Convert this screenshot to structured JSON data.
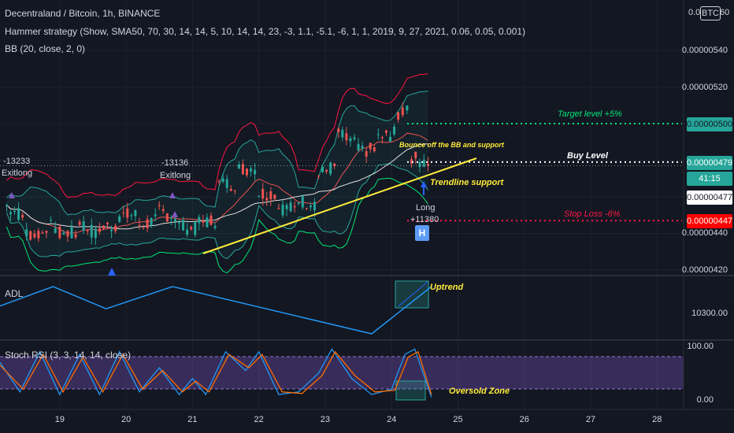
{
  "header": {
    "symbol_line": "Decentraland / Bitcoin, 1h, BINANCE",
    "strategy_line": "Hammer strategy (Show, SMA50, 70, 30, 14, 14, 5, 10, 14, 14, 23, -3, 1.1, -5.1, -6, 1, 1, 2019, 9, 27, 2021, 0.06, 0.05, 0.001)",
    "bb_line": "BB (20, close, 2, 0)",
    "currency_badge": "BTC",
    "top_label_partial": "0.0",
    "top_label_right": "60"
  },
  "price_axis": {
    "labels": [
      "0.00000540",
      "0.00000520",
      "0.00000440",
      "0.00000420"
    ],
    "target_badge": "0.00000500",
    "buy_badge": "0.00000479",
    "countdown": "41:15",
    "last_badge": "0.00000477",
    "stop_badge": "0.00000447",
    "colors": {
      "target": "#26a69a",
      "buy": "#ffffff",
      "stop": "#ff0000",
      "last": "#ffffff"
    }
  },
  "annotations": {
    "target_level": "Target level +5%",
    "buy_level": "Buy Level",
    "stop_loss": "Stop Loss -6%",
    "bounce": "Bounce off the BB and support",
    "trendline": "Trendline support",
    "uptrend": "Uptrend",
    "oversold": "Oversold Zone",
    "signal1_value": "-13233",
    "signal1_label": "Exitlong",
    "signal2_value": "-13136",
    "signal2_label": "Exitlong",
    "long_label": "Long",
    "long_value": "+11380",
    "hammer_marker": "H"
  },
  "adl_pane": {
    "title": "ADL",
    "axis_label": "10300.00"
  },
  "rsi_pane": {
    "title": "Stoch RSI (3, 3, 14, 14, close)",
    "axis_top": "100.00",
    "axis_bottom": "0.00"
  },
  "time_axis": {
    "labels": [
      "19",
      "20",
      "21",
      "22",
      "23",
      "24",
      "25",
      "26",
      "27",
      "28"
    ]
  },
  "chart_data": [
    {
      "type": "candlestick",
      "title": "Decentraland / Bitcoin, 1h, BINANCE",
      "ylabel": "",
      "ylim": [
        4.18e-06,
        5.62e-06
      ],
      "x_range": [
        18.1,
        28.4
      ],
      "levels": {
        "target": 5e-06,
        "buy": 4.79e-06,
        "stop": 4.47e-06,
        "last": 4.77e-06
      },
      "candles_approx": [
        {
          "day": 18.2,
          "open": 4.62e-06,
          "close": 4.55e-06
        },
        {
          "day": 18.5,
          "open": 4.48e-06,
          "close": 4.4e-06
        },
        {
          "day": 18.8,
          "open": 4.4e-06,
          "close": 4.44e-06
        },
        {
          "day": 19.0,
          "open": 4.43e-06,
          "close": 4.4e-06
        },
        {
          "day": 19.3,
          "open": 4.4e-06,
          "close": 4.46e-06
        },
        {
          "day": 19.6,
          "open": 4.38e-06,
          "close": 4.43e-06
        },
        {
          "day": 19.9,
          "open": 4.45e-06,
          "close": 4.5e-06
        },
        {
          "day": 20.2,
          "open": 4.5e-06,
          "close": 4.45e-06
        },
        {
          "day": 20.5,
          "open": 4.47e-06,
          "close": 4.52e-06
        },
        {
          "day": 20.8,
          "open": 4.48e-06,
          "close": 4.44e-06
        },
        {
          "day": 21.1,
          "open": 4.42e-06,
          "close": 4.46e-06
        },
        {
          "day": 21.4,
          "open": 4.47e-06,
          "close": 4.67e-06
        },
        {
          "day": 21.7,
          "open": 4.67e-06,
          "close": 4.75e-06
        },
        {
          "day": 22.0,
          "open": 4.76e-06,
          "close": 4.62e-06
        },
        {
          "day": 22.3,
          "open": 4.62e-06,
          "close": 4.54e-06
        },
        {
          "day": 22.6,
          "open": 4.53e-06,
          "close": 4.58e-06
        },
        {
          "day": 22.9,
          "open": 4.56e-06,
          "close": 4.72e-06
        },
        {
          "day": 23.2,
          "open": 4.78e-06,
          "close": 4.94e-06
        },
        {
          "day": 23.5,
          "open": 4.88e-06,
          "close": 4.85e-06
        },
        {
          "day": 23.8,
          "open": 4.86e-06,
          "close": 4.92e-06
        },
        {
          "day": 24.1,
          "open": 4.95e-06,
          "close": 5.05e-06
        },
        {
          "day": 24.3,
          "open": 5.12e-06,
          "close": 4.82e-06
        },
        {
          "day": 24.55,
          "open": 4.78e-06,
          "close": 4.77e-06
        }
      ],
      "trendline": [
        {
          "day": 21.2,
          "price": 4.42e-06
        },
        {
          "day": 25.4,
          "price": 4.83e-06
        }
      ]
    },
    {
      "type": "line",
      "title": "ADL",
      "series": [
        {
          "values": [
            [
              18.1,
              10310
            ],
            [
              18.9,
              10345
            ],
            [
              19.7,
              10305
            ],
            [
              20.7,
              10345
            ],
            [
              23.7,
              10260
            ],
            [
              24.6,
              10345
            ]
          ]
        }
      ]
    },
    {
      "type": "line",
      "title": "Stoch RSI (3, 3, 14, 14, close)",
      "ylim": [
        0,
        100
      ],
      "bands": [
        20,
        80
      ],
      "series": [
        {
          "values": [
            [
              18.1,
              70
            ],
            [
              18.4,
              15
            ],
            [
              18.7,
              90
            ],
            [
              19.0,
              10
            ],
            [
              19.3,
              85
            ],
            [
              19.6,
              10
            ],
            [
              19.9,
              90
            ],
            [
              20.2,
              15
            ],
            [
              20.5,
              60
            ],
            [
              20.8,
              10
            ],
            [
              21.0,
              40
            ],
            [
              21.2,
              10
            ],
            [
              21.5,
              90
            ],
            [
              21.8,
              55
            ],
            [
              22.0,
              90
            ],
            [
              22.3,
              10
            ],
            [
              22.6,
              15
            ],
            [
              22.9,
              50
            ],
            [
              23.1,
              95
            ],
            [
              23.4,
              40
            ],
            [
              23.7,
              10
            ],
            [
              24.0,
              20
            ],
            [
              24.2,
              85
            ],
            [
              24.35,
              95
            ],
            [
              24.6,
              5
            ]
          ]
        },
        {
          "values": [
            [
              18.1,
              65
            ],
            [
              18.45,
              20
            ],
            [
              18.75,
              85
            ],
            [
              19.05,
              15
            ],
            [
              19.35,
              80
            ],
            [
              19.65,
              15
            ],
            [
              19.95,
              85
            ],
            [
              20.25,
              20
            ],
            [
              20.55,
              55
            ],
            [
              20.85,
              15
            ],
            [
              21.05,
              35
            ],
            [
              21.25,
              15
            ],
            [
              21.55,
              85
            ],
            [
              21.85,
              60
            ],
            [
              22.05,
              85
            ],
            [
              22.35,
              15
            ],
            [
              22.65,
              12
            ],
            [
              22.95,
              45
            ],
            [
              23.15,
              90
            ],
            [
              23.45,
              45
            ],
            [
              23.75,
              15
            ],
            [
              24.05,
              18
            ],
            [
              24.25,
              80
            ],
            [
              24.4,
              90
            ],
            [
              24.6,
              10
            ]
          ]
        }
      ]
    }
  ]
}
